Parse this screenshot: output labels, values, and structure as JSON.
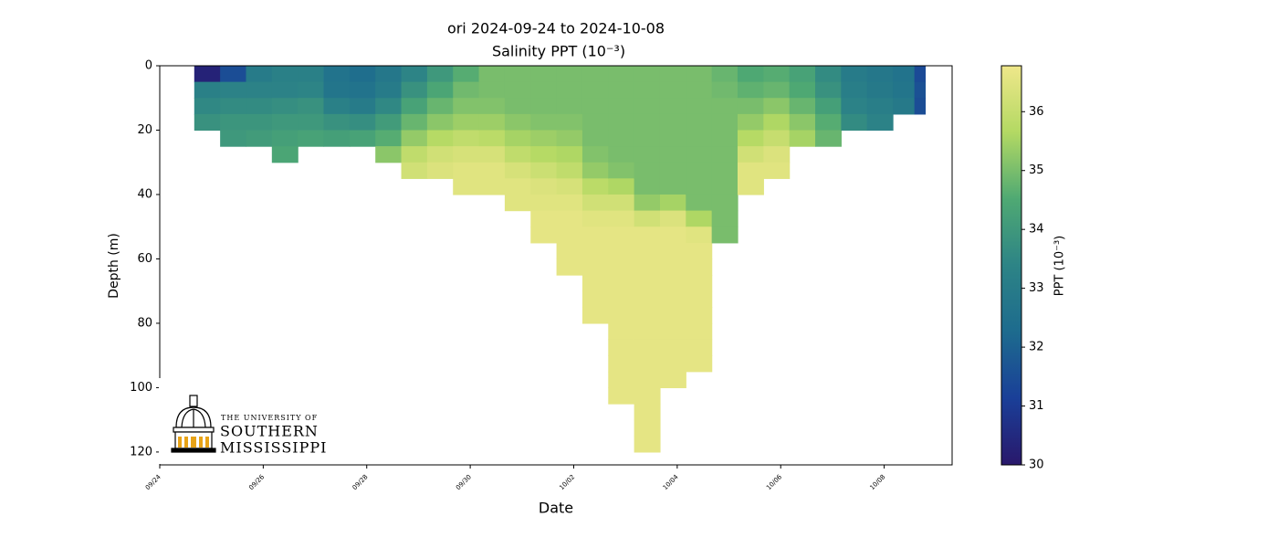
{
  "chart_data": {
    "type": "section",
    "title": "ori 2024-09-24 to 2024-10-08",
    "subtitle": "Salinity PPT (10⁻³)",
    "x_label": "Date",
    "y_label": "Depth (m)",
    "colorbar_label": "PPT (10⁻³)",
    "xlim": [
      "2024-09-24T00:00",
      "2024-10-09T07:30"
    ],
    "xticks": [
      {
        "value": "2024-09-24T00:00",
        "label": "09/24"
      },
      {
        "value": "2024-09-26T00:00",
        "label": "09/26"
      },
      {
        "value": "2024-09-28T00:00",
        "label": "09/28"
      },
      {
        "value": "2024-09-30T00:00",
        "label": "09/30"
      },
      {
        "value": "2024-10-02T00:00",
        "label": "10/02"
      },
      {
        "value": "2024-10-04T00:00",
        "label": "10/04"
      },
      {
        "value": "2024-10-06T00:00",
        "label": "10/06"
      },
      {
        "value": "2024-10-08T00:00",
        "label": "10/08"
      }
    ],
    "ylim": [
      0,
      124
    ],
    "y_inverted": true,
    "yticks": [
      0,
      20,
      40,
      60,
      80,
      100,
      120
    ],
    "clim": [
      30,
      36.78
    ],
    "cticks": [
      30,
      31,
      32,
      33,
      34,
      35,
      36
    ],
    "colormap": [
      "#29186b",
      "#1a3f98",
      "#1d6b8e",
      "#2d8486",
      "#4fa973",
      "#b3d963",
      "#efe78a"
    ],
    "depths": [
      0,
      5,
      10,
      15,
      20,
      25,
      30,
      35,
      40,
      45,
      50,
      55,
      60,
      65,
      70,
      75,
      80,
      85,
      90,
      95,
      100,
      105,
      110,
      115
    ],
    "profiles": [
      {
        "x": "2024-09-24T16:00",
        "values": [
          30.3,
          33.2,
          33.5,
          33.8
        ]
      },
      {
        "x": "2024-09-25T04:00",
        "values": [
          31.5,
          33.3,
          33.6,
          33.9,
          34.0
        ]
      },
      {
        "x": "2024-09-25T16:00",
        "values": [
          33.0,
          33.3,
          33.6,
          33.9,
          34.1
        ]
      },
      {
        "x": "2024-09-26T04:00",
        "values": [
          33.2,
          33.3,
          33.7,
          34.0,
          34.2,
          34.4
        ]
      },
      {
        "x": "2024-09-26T16:00",
        "values": [
          33.2,
          33.4,
          33.8,
          34.0,
          34.3
        ]
      },
      {
        "x": "2024-09-27T04:00",
        "values": [
          32.6,
          32.7,
          33.2,
          33.8,
          34.2
        ]
      },
      {
        "x": "2024-09-27T16:00",
        "values": [
          32.4,
          32.6,
          33.0,
          33.7,
          34.3
        ]
      },
      {
        "x": "2024-09-28T04:00",
        "values": [
          32.8,
          33.0,
          33.5,
          34.1,
          34.6,
          35.2
        ]
      },
      {
        "x": "2024-09-28T16:00",
        "values": [
          33.4,
          33.8,
          34.3,
          34.8,
          35.3,
          35.9,
          36.2
        ]
      },
      {
        "x": "2024-09-29T04:00",
        "values": [
          34.0,
          34.4,
          34.8,
          35.2,
          35.7,
          36.2,
          36.4
        ]
      },
      {
        "x": "2024-09-29T16:00",
        "values": [
          34.6,
          34.9,
          35.1,
          35.4,
          35.9,
          36.3,
          36.5,
          36.5
        ]
      },
      {
        "x": "2024-09-30T04:00",
        "values": [
          35.0,
          35.0,
          35.1,
          35.4,
          35.8,
          36.3,
          36.5,
          36.5
        ]
      },
      {
        "x": "2024-09-30T16:00",
        "values": [
          35.0,
          35.0,
          35.0,
          35.2,
          35.5,
          35.9,
          36.3,
          36.5,
          36.5
        ]
      },
      {
        "x": "2024-10-01T04:00",
        "values": [
          35.0,
          35.0,
          35.0,
          35.1,
          35.4,
          35.7,
          36.1,
          36.4,
          36.5,
          36.6,
          36.6
        ]
      },
      {
        "x": "2024-10-01T16:00",
        "values": [
          35.0,
          35.0,
          35.0,
          35.1,
          35.3,
          35.6,
          35.9,
          36.3,
          36.5,
          36.6,
          36.6,
          36.6,
          36.6
        ]
      },
      {
        "x": "2024-10-02T04:00",
        "values": [
          35.0,
          35.0,
          35.0,
          35.0,
          35.0,
          35.1,
          35.3,
          35.8,
          36.2,
          36.5,
          36.6,
          36.6,
          36.6,
          36.6,
          36.6,
          36.6
        ]
      },
      {
        "x": "2024-10-02T16:00",
        "values": [
          35.0,
          35.0,
          35.0,
          35.0,
          35.0,
          35.0,
          35.1,
          35.6,
          36.2,
          36.5,
          36.6,
          36.6,
          36.6,
          36.6,
          36.6,
          36.6,
          36.6,
          36.6,
          36.6,
          36.6,
          36.6
        ]
      },
      {
        "x": "2024-10-03T04:00",
        "values": [
          35.0,
          35.0,
          35.0,
          35.0,
          35.0,
          35.0,
          35.0,
          35.0,
          35.3,
          36.2,
          36.6,
          36.6,
          36.6,
          36.6,
          36.6,
          36.6,
          36.6,
          36.6,
          36.6,
          36.6,
          36.6,
          36.6,
          36.6,
          36.6
        ]
      },
      {
        "x": "2024-10-03T16:00",
        "values": [
          35.0,
          35.0,
          35.0,
          35.0,
          35.0,
          35.0,
          35.0,
          35.0,
          35.5,
          36.4,
          36.6,
          36.6,
          36.6,
          36.6,
          36.6,
          36.6,
          36.6,
          36.6,
          36.6,
          36.6
        ]
      },
      {
        "x": "2024-10-04T04:00",
        "values": [
          35.0,
          35.0,
          35.0,
          35.0,
          35.0,
          35.0,
          35.0,
          35.0,
          35.0,
          35.6,
          36.5,
          36.6,
          36.6,
          36.6,
          36.6,
          36.6,
          36.6,
          36.6,
          36.6
        ]
      },
      {
        "x": "2024-10-04T16:00",
        "values": [
          34.8,
          34.9,
          35.0,
          35.0,
          35.0,
          35.0,
          35.0,
          35.0,
          35.0,
          35.0,
          35.0
        ]
      },
      {
        "x": "2024-10-05T04:00",
        "values": [
          34.5,
          34.7,
          35.0,
          35.3,
          35.7,
          36.2,
          36.5,
          36.5
        ]
      },
      {
        "x": "2024-10-05T16:00",
        "values": [
          34.6,
          34.8,
          35.2,
          35.6,
          36.0,
          36.4,
          36.5
        ]
      },
      {
        "x": "2024-10-06T04:00",
        "values": [
          34.3,
          34.5,
          34.8,
          35.2,
          35.5
        ]
      },
      {
        "x": "2024-10-06T16:00",
        "values": [
          33.6,
          33.8,
          34.2,
          34.6,
          34.8
        ]
      },
      {
        "x": "2024-10-07T04:00",
        "values": [
          33.0,
          33.1,
          33.3,
          33.6
        ]
      },
      {
        "x": "2024-10-07T16:00",
        "values": [
          32.8,
          32.9,
          33.1,
          33.3
        ]
      },
      {
        "x": "2024-10-08T04:00",
        "values": [
          32.6,
          32.7,
          32.9
        ]
      },
      {
        "x": "2024-10-08T14:00",
        "values": [
          31.4,
          31.6,
          31.5
        ]
      }
    ],
    "logo": {
      "line1": "THE UNIVERSITY OF",
      "line2": "SOUTHERN",
      "line3": "MISSISSIPPI"
    }
  }
}
